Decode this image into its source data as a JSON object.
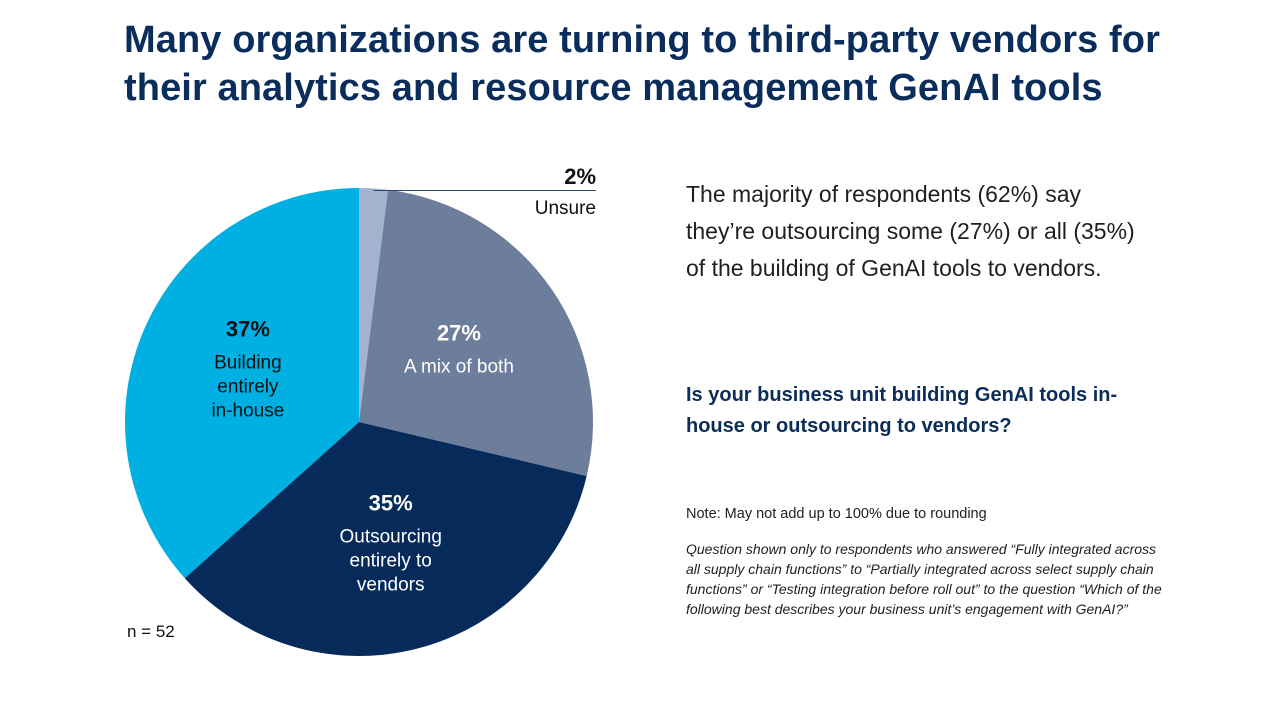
{
  "title": "Many organizations are turning to third-party vendors for their analytics and resource management GenAI tools",
  "summary": "The majority of respondents (62%) say they’re outsourcing some (27%) or all (35%) of the building of GenAI tools to vendors.",
  "question": "Is your business unit building GenAI tools in-house or outsourcing to vendors?",
  "note": "Note: May not add up to 100% due to rounding",
  "question_note": "Question shown only to respondents who answered “Fully integrated across all supply chain functions” to “Partially integrated across select supply chain functions” or “Testing integration before roll out” to the question “Which of the following best describes your business unit’s engagement with GenAI?”",
  "sample_size": "n = 52",
  "chart_data": {
    "type": "pie",
    "slices": [
      {
        "pct": 2,
        "value_label": "2%",
        "label": [
          "Unsure"
        ],
        "color": "#a3b3cf",
        "text_color": "#111111",
        "label_position": "outside"
      },
      {
        "pct": 27,
        "value_label": "27%",
        "label": [
          "A mix of both"
        ],
        "color": "#6d7e9c",
        "text_color": "#ffffff",
        "label_position": "inside"
      },
      {
        "pct": 35,
        "value_label": "35%",
        "label": [
          "Outsourcing",
          "entirely to",
          "vendors"
        ],
        "color": "#062a5a",
        "text_color": "#ffffff",
        "label_position": "inside"
      },
      {
        "pct": 37,
        "value_label": "37%",
        "label": [
          "Building",
          "entirely",
          "in-house"
        ],
        "color": "#00b0e2",
        "text_color": "#111111",
        "label_position": "inside"
      }
    ]
  }
}
